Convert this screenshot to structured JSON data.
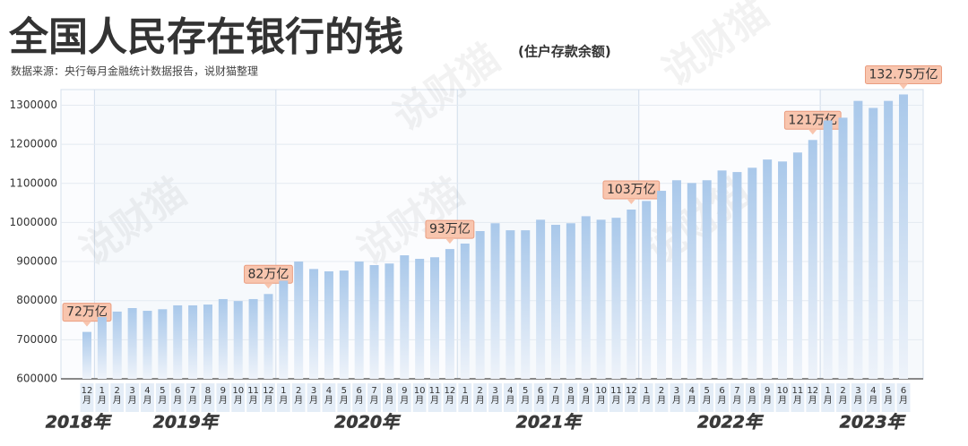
{
  "chart_data": {
    "type": "bar",
    "title": "全国人民存在银行的钱",
    "subtitle": "(住户存款余额)",
    "source": "数据来源：央行每月金融统计数据报告，说财猫整理",
    "watermark": "说财猫",
    "categories": [
      "12月",
      "1月",
      "2月",
      "3月",
      "4月",
      "5月",
      "6月",
      "7月",
      "8月",
      "9月",
      "10月",
      "11月",
      "12月",
      "1月",
      "2月",
      "3月",
      "4月",
      "5月",
      "6月",
      "7月",
      "8月",
      "9月",
      "10月",
      "11月",
      "12月",
      "1月",
      "2月",
      "3月",
      "4月",
      "5月",
      "6月",
      "7月",
      "8月",
      "9月",
      "10月",
      "11月",
      "12月",
      "1月",
      "2月",
      "3月",
      "4月",
      "5月",
      "6月",
      "7月",
      "8月",
      "9月",
      "10月",
      "11月",
      "12月",
      "1月",
      "2月",
      "3月",
      "4月",
      "5月",
      "6月"
    ],
    "year_labels": [
      "2018年",
      "2019年",
      "2020年",
      "2021年",
      "2022年",
      "2023年"
    ],
    "values": [
      720000,
      758000,
      772000,
      781000,
      774000,
      778000,
      788000,
      788000,
      790000,
      804000,
      799000,
      804000,
      817000,
      851000,
      900000,
      881000,
      875000,
      877000,
      900000,
      891000,
      895000,
      916000,
      907000,
      911000,
      932000,
      946000,
      978000,
      998000,
      980000,
      980000,
      1007000,
      994000,
      998000,
      1016000,
      1007000,
      1012000,
      1033000,
      1055000,
      1081000,
      1108000,
      1101000,
      1108000,
      1133000,
      1129000,
      1140000,
      1161000,
      1156000,
      1179000,
      1211000,
      1261000,
      1268000,
      1311000,
      1293000,
      1311000,
      1327500
    ],
    "value_labels": [
      "72万亿",
      null,
      null,
      null,
      null,
      null,
      null,
      null,
      null,
      null,
      null,
      null,
      "82万亿",
      null,
      null,
      null,
      null,
      null,
      null,
      null,
      null,
      null,
      null,
      null,
      "93万亿",
      null,
      null,
      null,
      null,
      null,
      null,
      null,
      null,
      null,
      null,
      null,
      "103万亿",
      null,
      null,
      null,
      null,
      null,
      null,
      null,
      null,
      null,
      null,
      null,
      "121万亿",
      null,
      null,
      null,
      null,
      null,
      "132.75万亿"
    ],
    "color": "#a9c8ea",
    "ylim": [
      600000,
      1340000
    ],
    "yticks": [
      600000,
      700000,
      800000,
      900000,
      1000000,
      1100000,
      1200000,
      1300000
    ],
    "grid": true
  }
}
